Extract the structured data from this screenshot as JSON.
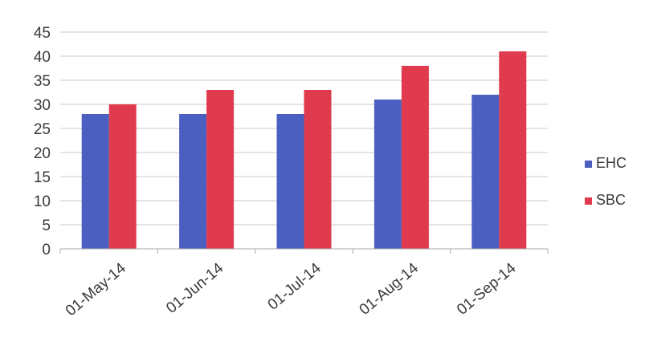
{
  "chart_data": {
    "type": "bar",
    "categories": [
      "01-May-14",
      "01-Jun-14",
      "01-Jul-14",
      "01-Aug-14",
      "01-Sep-14"
    ],
    "series": [
      {
        "name": "EHC",
        "values": [
          28,
          28,
          28,
          31,
          32
        ],
        "color": "#4a5fbf"
      },
      {
        "name": "SBC",
        "values": [
          30,
          33,
          33,
          38,
          41
        ],
        "color": "#e03a4e"
      }
    ],
    "title": "",
    "xlabel": "",
    "ylabel": "",
    "ylim": [
      0,
      45
    ],
    "yticks": [
      "0",
      "5",
      "10",
      "15",
      "20",
      "25",
      "30",
      "35",
      "40",
      "45"
    ],
    "grid": true,
    "legend_position": "right"
  }
}
